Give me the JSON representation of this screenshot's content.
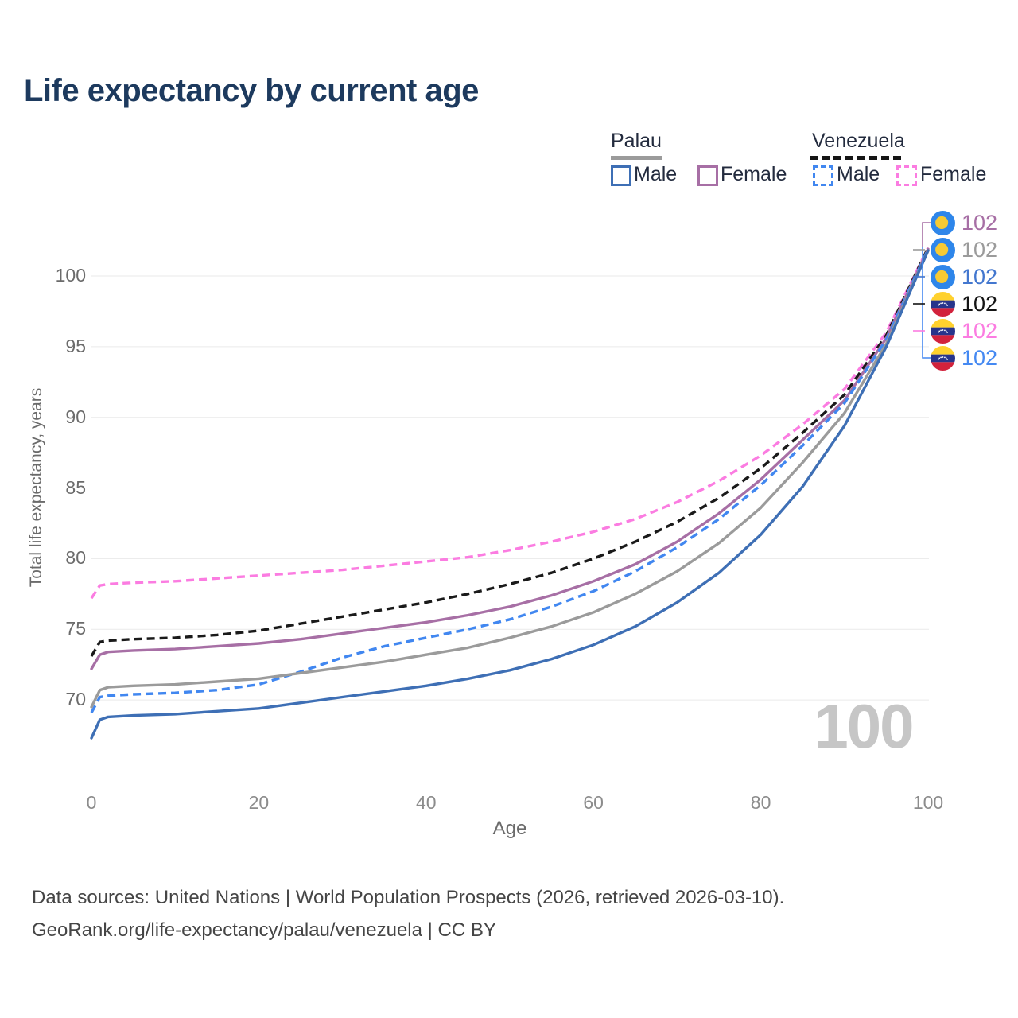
{
  "title": "Life expectancy by current age",
  "watermark": "100",
  "legend": {
    "groups": [
      {
        "label": "Palau",
        "style": "solid",
        "underline_color": "#9b9b9b",
        "items": [
          {
            "label": "Male",
            "color": "#3e6fb5"
          },
          {
            "label": "Female",
            "color": "#a76fa5"
          }
        ]
      },
      {
        "label": "Venezuela",
        "style": "dashed",
        "underline_color": "#151515",
        "items": [
          {
            "label": "Male",
            "color": "#4187f0"
          },
          {
            "label": "Female",
            "color": "#fb7ce1"
          }
        ]
      }
    ]
  },
  "chart_data": {
    "type": "line",
    "title": "Life expectancy by current age",
    "xlabel": "Age",
    "ylabel": "Total life expectancy, years",
    "xlim": [
      0,
      100
    ],
    "ylim": [
      65.5,
      103
    ],
    "xticks": [
      0,
      20,
      40,
      60,
      80,
      100
    ],
    "yticks": [
      70,
      75,
      80,
      85,
      90,
      95,
      100
    ],
    "grid": "horizontal",
    "x": [
      0,
      1,
      2,
      5,
      10,
      15,
      20,
      25,
      30,
      35,
      40,
      45,
      50,
      55,
      60,
      65,
      70,
      75,
      80,
      85,
      90,
      95,
      100
    ],
    "series": [
      {
        "name": "Venezuela Female",
        "country": "Venezuela",
        "sex": "Female",
        "line_style": "dashed",
        "color": "#fb7ce1",
        "end_label": "102",
        "values": [
          77.2,
          78.1,
          78.2,
          78.3,
          78.4,
          78.6,
          78.8,
          79.0,
          79.2,
          79.5,
          79.8,
          80.1,
          80.6,
          81.2,
          81.9,
          82.8,
          84.0,
          85.5,
          87.3,
          89.5,
          92.0,
          96.0,
          102.0
        ]
      },
      {
        "name": "Venezuela Both sexes",
        "country": "Venezuela",
        "sex": "Both",
        "line_style": "dashed",
        "color": "#1a1a1a",
        "end_label": "102",
        "values": [
          73.1,
          74.1,
          74.2,
          74.3,
          74.4,
          74.6,
          74.9,
          75.4,
          75.9,
          76.4,
          76.9,
          77.5,
          78.2,
          79.0,
          80.0,
          81.2,
          82.6,
          84.3,
          86.4,
          88.9,
          91.6,
          95.8,
          102.0
        ]
      },
      {
        "name": "Palau Female",
        "country": "Palau",
        "sex": "Female",
        "line_style": "solid",
        "color": "#a76fa5",
        "end_label": "102",
        "values": [
          72.2,
          73.2,
          73.4,
          73.5,
          73.6,
          73.8,
          74.0,
          74.3,
          74.7,
          75.1,
          75.5,
          76.0,
          76.6,
          77.4,
          78.4,
          79.6,
          81.2,
          83.2,
          85.6,
          88.4,
          91.2,
          95.6,
          101.9
        ]
      },
      {
        "name": "Venezuela Male",
        "country": "Venezuela",
        "sex": "Male",
        "line_style": "dashed",
        "color": "#4187f0",
        "end_label": "102",
        "values": [
          69.1,
          70.2,
          70.3,
          70.4,
          70.5,
          70.7,
          71.1,
          72.0,
          73.0,
          73.8,
          74.4,
          75.0,
          75.7,
          76.6,
          77.7,
          79.1,
          80.8,
          82.8,
          85.2,
          88.0,
          91.0,
          95.5,
          101.9
        ]
      },
      {
        "name": "Palau Both sexes",
        "country": "Palau",
        "sex": "Both",
        "line_style": "solid",
        "color": "#9b9b9b",
        "end_label": "102",
        "values": [
          69.5,
          70.7,
          70.9,
          71.0,
          71.1,
          71.3,
          71.5,
          71.9,
          72.3,
          72.7,
          73.2,
          73.7,
          74.4,
          75.2,
          76.2,
          77.5,
          79.1,
          81.1,
          83.6,
          86.8,
          90.3,
          95.2,
          101.8
        ]
      },
      {
        "name": "Palau Male",
        "country": "Palau",
        "sex": "Male",
        "line_style": "solid",
        "color": "#3e6fb5",
        "end_label": "102",
        "values": [
          67.3,
          68.6,
          68.8,
          68.9,
          69.0,
          69.2,
          69.4,
          69.8,
          70.2,
          70.6,
          71.0,
          71.5,
          72.1,
          72.9,
          73.9,
          75.2,
          76.9,
          79.0,
          81.7,
          85.1,
          89.4,
          95.0,
          101.8
        ]
      }
    ]
  },
  "end_labels": [
    {
      "series": "Palau Female",
      "value": "102",
      "flag": "palau",
      "color": "#a76fa5"
    },
    {
      "series": "Palau Both sexes",
      "value": "102",
      "flag": "palau",
      "color": "#9b9b9b"
    },
    {
      "series": "Palau Male",
      "value": "102",
      "flag": "palau",
      "color": "#4377cf"
    },
    {
      "series": "Venezuela Both sexes",
      "value": "102",
      "flag": "venezuela",
      "color": "#141414"
    },
    {
      "series": "Venezuela Female",
      "value": "102",
      "flag": "venezuela",
      "color": "#fb7ce1"
    },
    {
      "series": "Venezuela Male",
      "value": "102",
      "flag": "venezuela",
      "color": "#4589f2"
    }
  ],
  "footer": {
    "line1": "Data sources: United Nations | World Population Prospects (2026, retrieved 2026-03-10).",
    "line2": "GeoRank.org/life-expectancy/palau/venezuela | CC BY"
  }
}
